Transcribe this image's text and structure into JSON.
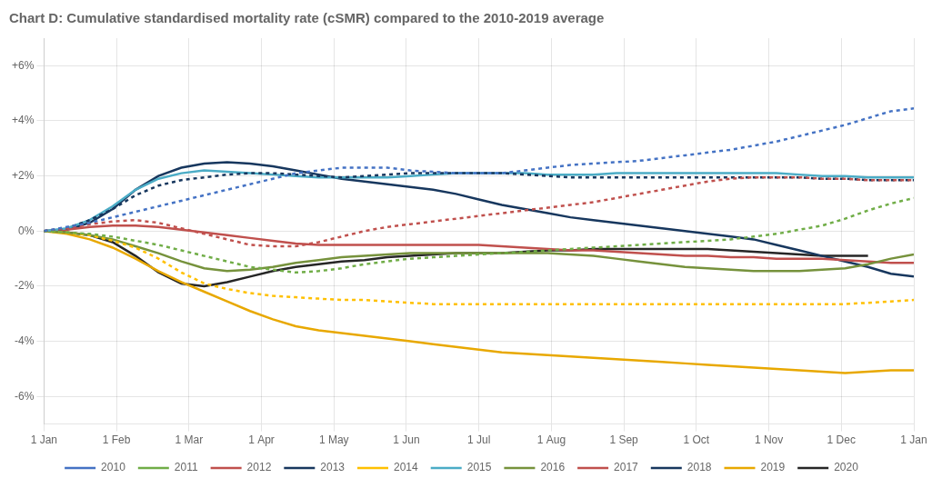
{
  "chart_data": {
    "type": "line",
    "title": "Chart D: Cumulative standardised mortality rate (cSMR) compared to the 2010-2019 average",
    "x": [
      0,
      0.3157894737,
      0.6315789474,
      0.9473684211,
      1.2631578947,
      1.5789473684,
      1.8947368421,
      2.2105263158,
      2.5263157895,
      2.8421052632,
      3.1578947368,
      3.4736842105,
      3.7894736842,
      4.1052631579,
      4.4210526316,
      4.7368421053,
      5.0526315789,
      5.3684210526,
      5.6842105263,
      6,
      6.3157894737,
      6.6315789474,
      6.9473684211,
      7.2631578947,
      7.5789473684,
      7.8947368421,
      8.2105263158,
      8.5263157895,
      8.8421052632,
      9.1578947368,
      9.4736842105,
      9.7894736842,
      10.1052631579,
      10.4210526316,
      10.7368421053,
      11.0526315789,
      11.3684210526,
      11.6842105263,
      12
    ],
    "xlim": [
      0,
      12
    ],
    "xticks": [
      {
        "value": 0,
        "label": "1 Jan"
      },
      {
        "value": 1,
        "label": "1 Feb"
      },
      {
        "value": 2,
        "label": "1 Mar"
      },
      {
        "value": 3,
        "label": "1 Apr"
      },
      {
        "value": 4,
        "label": "1 May"
      },
      {
        "value": 5,
        "label": "1 Jun"
      },
      {
        "value": 6,
        "label": "1 Jul"
      },
      {
        "value": 7,
        "label": "1 Aug"
      },
      {
        "value": 8,
        "label": "1 Sep"
      },
      {
        "value": 9,
        "label": "1 Oct"
      },
      {
        "value": 10,
        "label": "1 Nov"
      },
      {
        "value": 11,
        "label": "1 Dec"
      },
      {
        "value": 12,
        "label": "1 Jan"
      }
    ],
    "ylim": [
      -7,
      7
    ],
    "yticks": [
      {
        "value": -6,
        "label": "-6%"
      },
      {
        "value": -4,
        "label": "-4%"
      },
      {
        "value": -2,
        "label": "-2%"
      },
      {
        "value": 0,
        "label": "0%"
      },
      {
        "value": 2,
        "label": "+2%"
      },
      {
        "value": 4,
        "label": "+4%"
      },
      {
        "value": 6,
        "label": "+6%"
      }
    ],
    "grid": true,
    "legend": "bottom",
    "series": [
      {
        "name": "2010",
        "color": "#4472C4",
        "line_style": "dotted",
        "values": [
          0.0,
          0.15,
          0.3,
          0.5,
          0.7,
          0.9,
          1.1,
          1.3,
          1.5,
          1.7,
          1.9,
          2.1,
          2.2,
          2.3,
          2.3,
          2.3,
          2.2,
          2.15,
          2.1,
          2.1,
          2.1,
          2.2,
          2.3,
          2.4,
          2.45,
          2.5,
          2.55,
          2.65,
          2.75,
          2.85,
          2.95,
          3.1,
          3.25,
          3.45,
          3.65,
          3.85,
          4.1,
          4.35,
          4.45
        ]
      },
      {
        "name": "2011",
        "color": "#70AD47",
        "line_style": "dotted",
        "values": [
          0.0,
          -0.05,
          -0.1,
          -0.2,
          -0.35,
          -0.5,
          -0.7,
          -0.9,
          -1.1,
          -1.3,
          -1.4,
          -1.5,
          -1.45,
          -1.35,
          -1.2,
          -1.1,
          -1.0,
          -0.95,
          -0.9,
          -0.85,
          -0.8,
          -0.75,
          -0.7,
          -0.65,
          -0.6,
          -0.55,
          -0.5,
          -0.45,
          -0.4,
          -0.35,
          -0.3,
          -0.2,
          -0.1,
          0.05,
          0.2,
          0.45,
          0.75,
          1.0,
          1.2
        ]
      },
      {
        "name": "2012",
        "color": "#C0504D",
        "line_style": "dotted",
        "values": [
          0.0,
          0.1,
          0.25,
          0.35,
          0.4,
          0.3,
          0.1,
          -0.1,
          -0.3,
          -0.5,
          -0.55,
          -0.55,
          -0.4,
          -0.2,
          0.0,
          0.15,
          0.25,
          0.35,
          0.45,
          0.55,
          0.65,
          0.75,
          0.85,
          0.95,
          1.05,
          1.2,
          1.35,
          1.5,
          1.65,
          1.8,
          1.9,
          1.95,
          1.95,
          1.95,
          1.9,
          1.9,
          1.85,
          1.85,
          1.85
        ]
      },
      {
        "name": "2013",
        "color": "#17375E",
        "line_style": "dotted",
        "values": [
          0.0,
          0.1,
          0.4,
          0.8,
          1.3,
          1.65,
          1.85,
          1.95,
          2.05,
          2.1,
          2.1,
          2.05,
          2.0,
          1.95,
          2.0,
          2.05,
          2.1,
          2.1,
          2.1,
          2.1,
          2.1,
          2.05,
          2.0,
          1.95,
          1.95,
          1.95,
          1.95,
          1.95,
          1.95,
          1.95,
          1.95,
          1.95,
          1.95,
          1.95,
          1.9,
          1.9,
          1.85,
          1.85,
          1.85
        ]
      },
      {
        "name": "2014",
        "color": "#FFC000",
        "line_style": "dotted",
        "values": [
          0.0,
          -0.05,
          -0.15,
          -0.35,
          -0.6,
          -1.0,
          -1.5,
          -1.9,
          -2.1,
          -2.25,
          -2.35,
          -2.4,
          -2.45,
          -2.5,
          -2.5,
          -2.55,
          -2.6,
          -2.65,
          -2.65,
          -2.65,
          -2.65,
          -2.65,
          -2.65,
          -2.65,
          -2.65,
          -2.65,
          -2.65,
          -2.65,
          -2.65,
          -2.65,
          -2.65,
          -2.65,
          -2.65,
          -2.65,
          -2.65,
          -2.65,
          -2.6,
          -2.55,
          -2.5
        ]
      },
      {
        "name": "2015",
        "color": "#4BACC6",
        "line_style": "solid",
        "values": [
          0.0,
          0.1,
          0.4,
          0.9,
          1.5,
          1.9,
          2.1,
          2.2,
          2.15,
          2.1,
          2.05,
          2.0,
          1.95,
          1.95,
          1.95,
          1.95,
          2.0,
          2.05,
          2.1,
          2.1,
          2.1,
          2.1,
          2.05,
          2.05,
          2.05,
          2.1,
          2.1,
          2.1,
          2.1,
          2.1,
          2.1,
          2.1,
          2.1,
          2.05,
          2.0,
          2.0,
          1.95,
          1.95,
          1.95
        ]
      },
      {
        "name": "2016",
        "color": "#76923C",
        "line_style": "solid",
        "values": [
          0.0,
          -0.05,
          -0.15,
          -0.3,
          -0.55,
          -0.8,
          -1.1,
          -1.35,
          -1.45,
          -1.4,
          -1.3,
          -1.15,
          -1.05,
          -0.95,
          -0.9,
          -0.85,
          -0.8,
          -0.8,
          -0.8,
          -0.8,
          -0.8,
          -0.8,
          -0.8,
          -0.85,
          -0.9,
          -1.0,
          -1.1,
          -1.2,
          -1.3,
          -1.35,
          -1.4,
          -1.45,
          -1.45,
          -1.45,
          -1.4,
          -1.35,
          -1.2,
          -1.0,
          -0.85
        ]
      },
      {
        "name": "2017",
        "color": "#C0504D",
        "line_style": "solid",
        "values": [
          0.0,
          0.05,
          0.15,
          0.2,
          0.2,
          0.15,
          0.05,
          -0.05,
          -0.15,
          -0.25,
          -0.35,
          -0.45,
          -0.5,
          -0.5,
          -0.5,
          -0.5,
          -0.5,
          -0.5,
          -0.5,
          -0.5,
          -0.55,
          -0.6,
          -0.65,
          -0.7,
          -0.7,
          -0.75,
          -0.8,
          -0.85,
          -0.9,
          -0.9,
          -0.95,
          -0.95,
          -1.0,
          -1.0,
          -1.0,
          -1.05,
          -1.1,
          -1.15,
          -1.15
        ]
      },
      {
        "name": "2018",
        "color": "#17375E",
        "line_style": "solid",
        "values": [
          0.0,
          0.05,
          0.3,
          0.8,
          1.5,
          2.0,
          2.3,
          2.45,
          2.5,
          2.45,
          2.35,
          2.2,
          2.05,
          1.9,
          1.8,
          1.7,
          1.6,
          1.5,
          1.35,
          1.15,
          0.95,
          0.8,
          0.65,
          0.5,
          0.4,
          0.3,
          0.2,
          0.1,
          0.0,
          -0.1,
          -0.2,
          -0.3,
          -0.5,
          -0.7,
          -0.9,
          -1.1,
          -1.3,
          -1.55,
          -1.65
        ]
      },
      {
        "name": "2019",
        "color": "#E8A800",
        "line_style": "solid",
        "values": [
          0.0,
          -0.1,
          -0.3,
          -0.6,
          -1.0,
          -1.45,
          -1.85,
          -2.2,
          -2.55,
          -2.9,
          -3.2,
          -3.45,
          -3.6,
          -3.7,
          -3.8,
          -3.9,
          -4.0,
          -4.1,
          -4.2,
          -4.3,
          -4.4,
          -4.45,
          -4.5,
          -4.55,
          -4.6,
          -4.65,
          -4.7,
          -4.75,
          -4.8,
          -4.85,
          -4.9,
          -4.95,
          -5.0,
          -5.05,
          -5.1,
          -5.15,
          -5.1,
          -5.05,
          -5.05
        ]
      },
      {
        "name": "2020",
        "color": "#262626",
        "line_style": "solid",
        "values": [
          0.0,
          -0.05,
          -0.15,
          -0.4,
          -0.9,
          -1.5,
          -1.9,
          -2.0,
          -1.85,
          -1.65,
          -1.45,
          -1.3,
          -1.2,
          -1.1,
          -1.05,
          -0.95,
          -0.9,
          -0.85,
          -0.8,
          -0.8,
          -0.8,
          -0.75,
          -0.7,
          -0.7,
          -0.65,
          -0.65,
          -0.65,
          -0.65,
          -0.65,
          -0.65,
          -0.7,
          -0.75,
          -0.8,
          -0.85,
          -0.9,
          -0.9,
          -0.9,
          null,
          null
        ]
      }
    ]
  }
}
